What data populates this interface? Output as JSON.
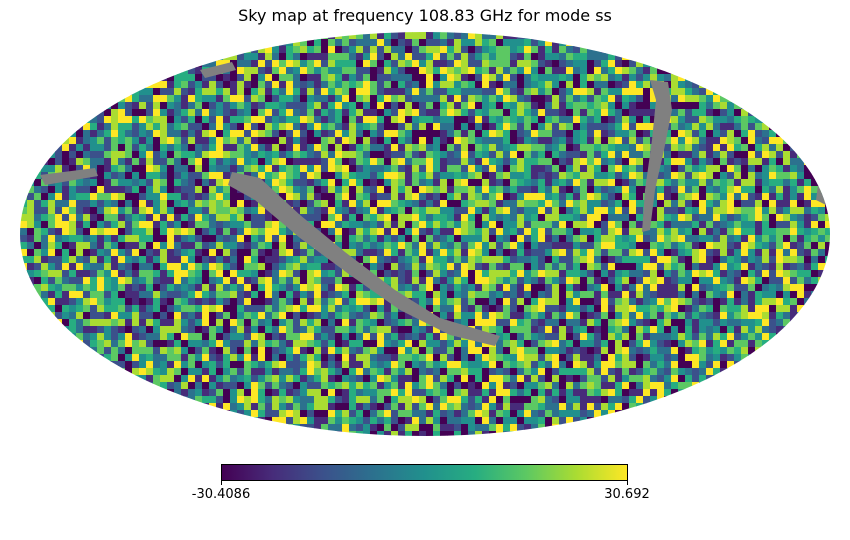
{
  "title": "Sky map at frequency 108.83 GHz for mode ss",
  "colorbar": {
    "min_label": "-30.4086",
    "max_label": "30.692",
    "colormap": "viridis",
    "colors": [
      "#440154",
      "#472c7a",
      "#3b518b",
      "#2c718e",
      "#21908d",
      "#27ad81",
      "#5cc863",
      "#aadc32",
      "#fde725"
    ]
  },
  "map": {
    "projection": "mollweide",
    "masked_color": "#808080",
    "value_range": [
      -30.4086,
      30.692
    ]
  }
}
